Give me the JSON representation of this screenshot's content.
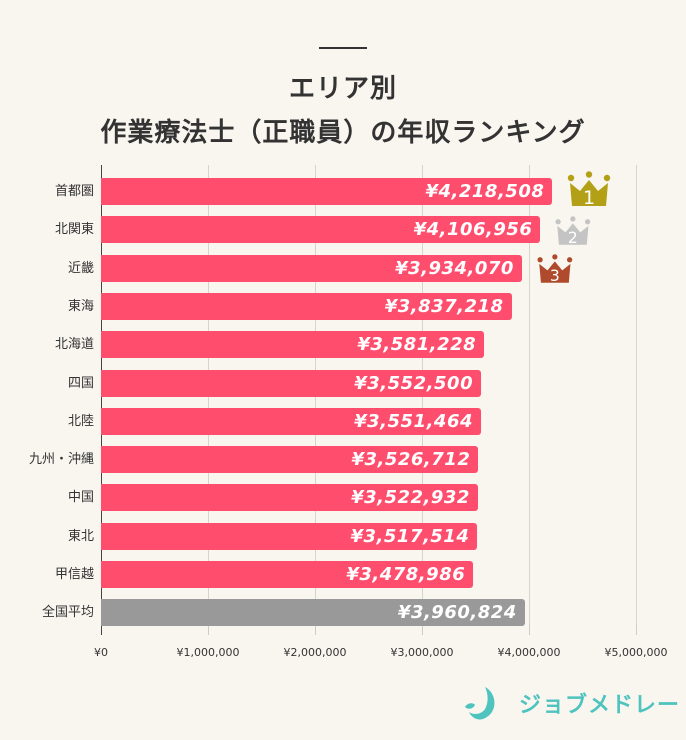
{
  "title": {
    "line1": "エリア別",
    "line2": "作業療法士（正職員）の年収ランキング"
  },
  "colors": {
    "bar": "#ff4d6d",
    "average_bar": "#999999",
    "background": "#f9f6f0",
    "crown_gold": "#b4a016",
    "crown_silver": "#c4c4c4",
    "crown_bronze": "#b04a2c",
    "logo": "#4fc3be"
  },
  "chart_data": {
    "type": "bar",
    "orientation": "horizontal",
    "title": "エリア別 作業療法士（正職員）の年収ランキング",
    "xlabel": "",
    "ylabel": "",
    "xlim": [
      0,
      5000000
    ],
    "x_ticks": [
      "¥0",
      "¥1,000,000",
      "¥2,000,000",
      "¥3,000,000",
      "¥4,000,000",
      "¥5,000,000"
    ],
    "grid": true,
    "categories": [
      "首都圏",
      "北関東",
      "近畿",
      "東海",
      "北海道",
      "四国",
      "北陸",
      "九州・沖縄",
      "中国",
      "東北",
      "甲信越",
      "全国平均"
    ],
    "values": [
      4218508,
      4106956,
      3934070,
      3837218,
      3581228,
      3552500,
      3551464,
      3526712,
      3522932,
      3517514,
      3478986,
      3960824
    ],
    "value_labels": [
      "¥4,218,508",
      "¥4,106,956",
      "¥3,934,070",
      "¥3,837,218",
      "¥3,581,228",
      "¥3,552,500",
      "¥3,551,464",
      "¥3,526,712",
      "¥3,522,932",
      "¥3,517,514",
      "¥3,478,986",
      "¥3,960,824"
    ],
    "annotations": [
      {
        "category": "首都圏",
        "rank": "1",
        "icon": "gold-crown"
      },
      {
        "category": "北関東",
        "rank": "2",
        "icon": "silver-crown"
      },
      {
        "category": "近畿",
        "rank": "3",
        "icon": "bronze-crown"
      }
    ]
  },
  "logo": {
    "text": "ジョブメドレー"
  }
}
